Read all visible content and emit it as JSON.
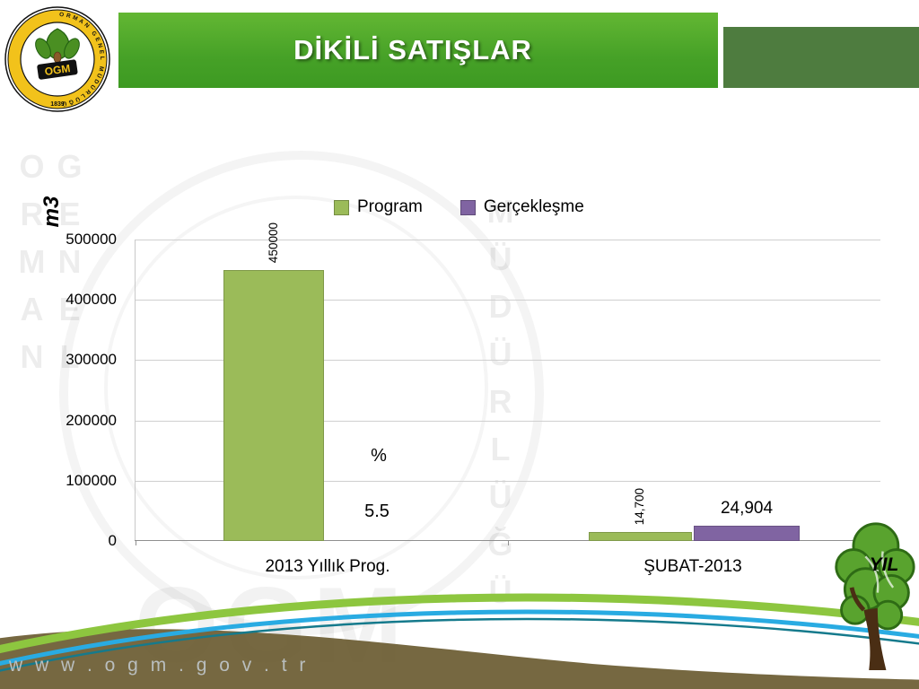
{
  "slide": {
    "title": "DİKİLİ SATIŞLAR",
    "footer_url": "w w w . o g m . g o v . t r",
    "logo": {
      "org_text": "ORMAN GENEL MÜDÜRLÜĞÜ",
      "abbr": "OGM",
      "year": "1839"
    },
    "watermark": {
      "left_text": "ORMAN GENEL",
      "right_text": "MÜDÜRLÜĞÜ",
      "abbr": "OGM"
    }
  },
  "chart_data": {
    "type": "bar",
    "title": "",
    "categories": [
      "2013 Yıllık Prog.",
      "ŞUBAT-2013"
    ],
    "series": [
      {
        "name": "Program",
        "color": "#9bbb59",
        "values": [
          450000,
          14700
        ]
      },
      {
        "name": "Gerçekleşme",
        "color": "#8064a2",
        "values": [
          null,
          24904
        ]
      }
    ],
    "value_labels": [
      "450000",
      "14,700",
      "24,904"
    ],
    "annotation": {
      "sign": "%",
      "value": "5.5"
    },
    "ylabel": "m3",
    "xlabel": "YIL",
    "ylim": [
      0,
      500000
    ],
    "yticks": [
      "500000",
      "400000",
      "300000",
      "200000",
      "100000",
      "0"
    ],
    "grid": "horizontal",
    "legend_position": "top"
  }
}
